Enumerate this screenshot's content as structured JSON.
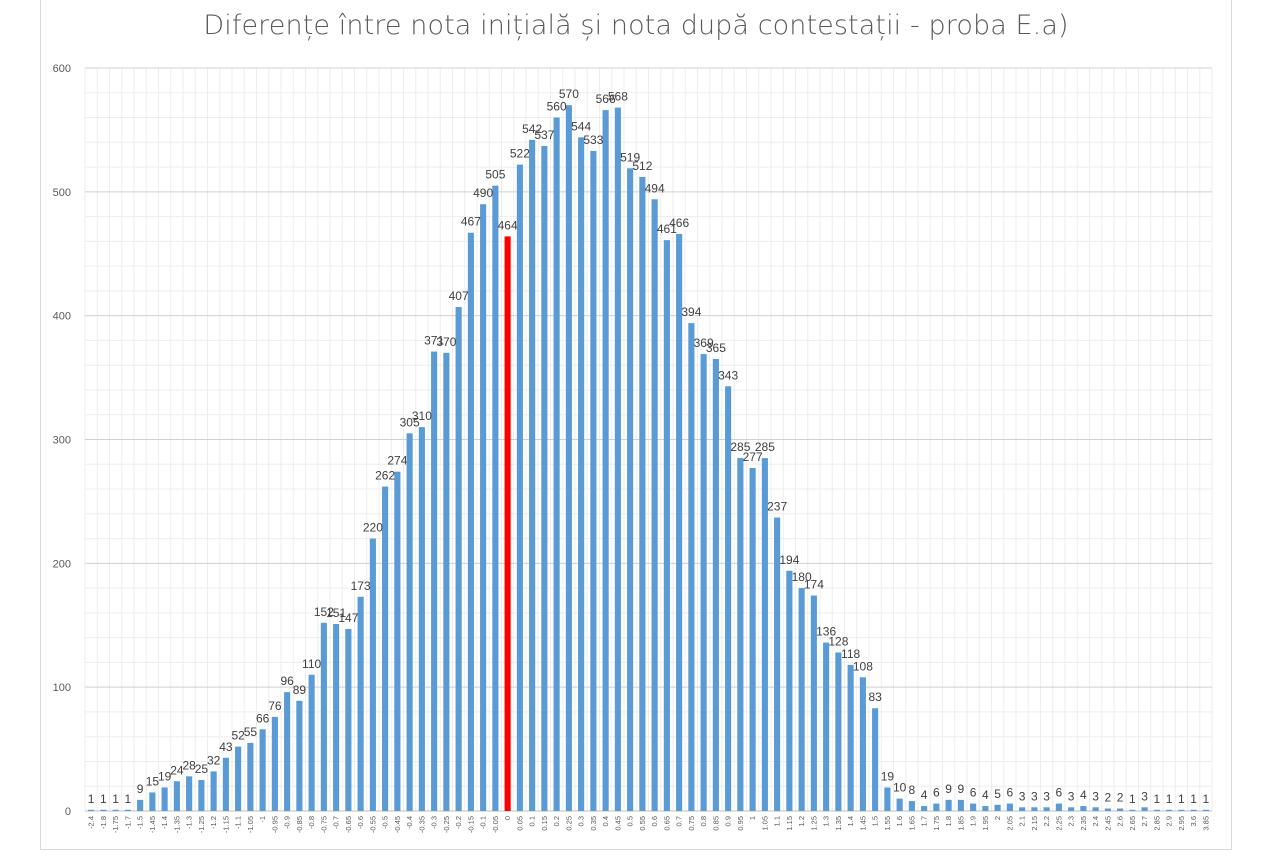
{
  "chart_data": {
    "type": "bar",
    "title": "Diferențe între nota inițială și nota după contestații - proba E.a)",
    "xlabel": "",
    "ylabel": "",
    "ylim": [
      0,
      600
    ],
    "yticks": [
      0,
      100,
      200,
      300,
      400,
      500,
      600
    ],
    "grid": true,
    "legend": "none",
    "bar_color": "#5b9bd5",
    "highlight_color": "#ff0000",
    "highlight_category": "0",
    "categories": [
      "-2.4",
      "-1.8",
      "-1.75",
      "-1.7",
      "-1.5",
      "-1.45",
      "-1.4",
      "-1.35",
      "-1.3",
      "-1.25",
      "-1.2",
      "-1.15",
      "-1.1",
      "-1.05",
      "-1",
      "-0.95",
      "-0.9",
      "-0.85",
      "-0.8",
      "-0.75",
      "-0.7",
      "-0.65",
      "-0.6",
      "-0.55",
      "-0.5",
      "-0.45",
      "-0.4",
      "-0.35",
      "-0.3",
      "-0.25",
      "-0.2",
      "-0.15",
      "-0.1",
      "-0.05",
      "0",
      "0.05",
      "0.1",
      "0.15",
      "0.2",
      "0.25",
      "0.3",
      "0.35",
      "0.4",
      "0.45",
      "0.5",
      "0.55",
      "0.6",
      "0.65",
      "0.7",
      "0.75",
      "0.8",
      "0.85",
      "0.9",
      "0.95",
      "1",
      "1.05",
      "1.1",
      "1.15",
      "1.2",
      "1.25",
      "1.3",
      "1.35",
      "1.4",
      "1.45",
      "1.5",
      "1.55",
      "1.6",
      "1.65",
      "1.7",
      "1.75",
      "1.8",
      "1.85",
      "1.9",
      "1.95",
      "2",
      "2.05",
      "2.1",
      "2.15",
      "2.2",
      "2.25",
      "2.3",
      "2.35",
      "2.4",
      "2.45",
      "2.6",
      "2.65",
      "2.7",
      "2.85",
      "2.9",
      "2.95",
      "3.6",
      "3.85"
    ],
    "values": [
      1,
      1,
      1,
      1,
      9,
      15,
      19,
      24,
      28,
      25,
      32,
      43,
      52,
      55,
      66,
      76,
      96,
      89,
      110,
      152,
      151,
      147,
      173,
      220,
      262,
      274,
      305,
      310,
      371,
      370,
      407,
      467,
      490,
      505,
      464,
      522,
      542,
      537,
      560,
      570,
      544,
      533,
      566,
      568,
      519,
      512,
      494,
      461,
      466,
      394,
      369,
      365,
      343,
      285,
      277,
      285,
      237,
      194,
      180,
      174,
      136,
      128,
      118,
      108,
      83,
      19,
      10,
      8,
      4,
      6,
      9,
      9,
      6,
      4,
      5,
      6,
      3,
      3,
      3,
      6,
      3,
      4,
      3,
      2,
      2,
      1,
      3,
      1,
      1,
      1,
      1,
      1
    ]
  }
}
